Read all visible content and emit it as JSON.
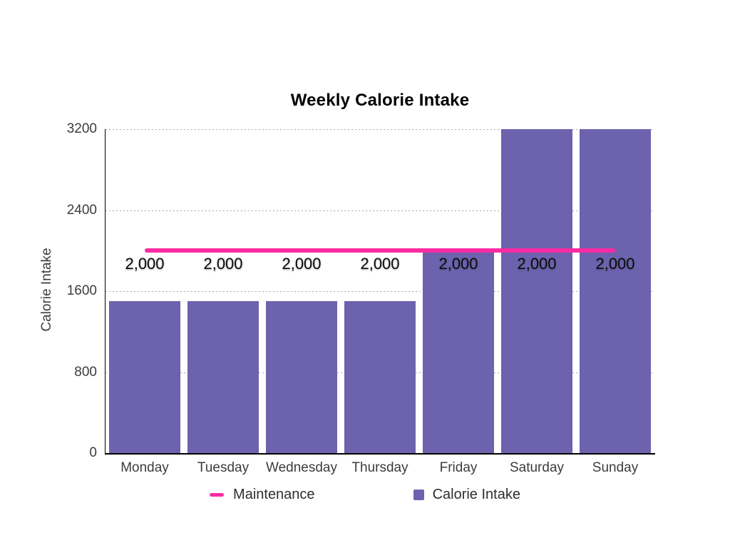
{
  "title": "Weekly Calorie Intake",
  "colors": {
    "bar": "#6C62AE",
    "line": "#FA2BA3",
    "grid": "#A9A9A9",
    "axis": "#000000",
    "tick_text": "#3C3C3C"
  },
  "y_axis": {
    "label": "Calorie Intake",
    "tick_labels": [
      "0",
      "800",
      "1600",
      "2400",
      "3200"
    ]
  },
  "x_axis": {
    "labels": [
      "Monday",
      "Tuesday",
      "Wednesday",
      "Thursday",
      "Friday",
      "Saturday",
      "Sunday"
    ]
  },
  "legend": [
    {
      "swatch": "line-dash",
      "label": "Maintenance",
      "color": "#FA2BA3"
    },
    {
      "swatch": "square",
      "label": "Calorie Intake",
      "color": "#6C62AE"
    }
  ],
  "chart_data": {
    "type": "bar",
    "title": "Weekly Calorie Intake",
    "xlabel": "",
    "ylabel": "Calorie Intake",
    "ylim": [
      0,
      3200
    ],
    "yticks": [
      0,
      800,
      1600,
      2400,
      3200
    ],
    "grid": "horizontal-dotted",
    "legend_position": "bottom",
    "categories": [
      "Monday",
      "Tuesday",
      "Wednesday",
      "Thursday",
      "Friday",
      "Saturday",
      "Sunday"
    ],
    "series": [
      {
        "name": "Calorie Intake",
        "type": "bar",
        "color": "#6C62AE",
        "values": [
          1500,
          1500,
          1500,
          1500,
          2000,
          3200,
          3200
        ]
      },
      {
        "name": "Maintenance",
        "type": "line",
        "color": "#FA2BA3",
        "values": [
          2000,
          2000,
          2000,
          2000,
          2000,
          2000,
          2000
        ],
        "point_labels": [
          "2,000",
          "2,000",
          "2,000",
          "2,000",
          "2,000",
          "2,000",
          "2,000"
        ]
      }
    ]
  }
}
